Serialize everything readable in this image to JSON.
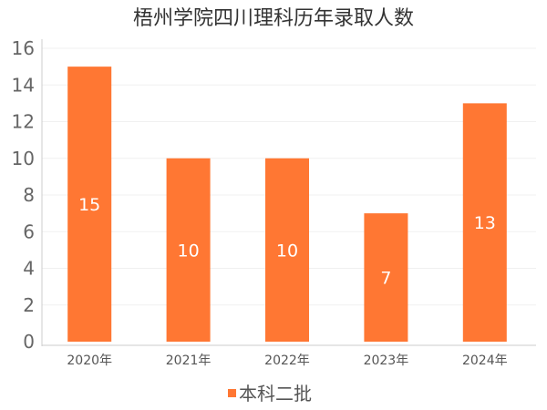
{
  "chart_data": {
    "type": "bar",
    "title": "梧州学院四川理科历年录取人数",
    "categories": [
      "2020年",
      "2021年",
      "2022年",
      "2023年",
      "2024年"
    ],
    "series": [
      {
        "name": "本科二批",
        "values": [
          15,
          10,
          10,
          7,
          13
        ],
        "color": "#FF7733"
      }
    ],
    "ylim": [
      0,
      16
    ],
    "yticks": [
      0,
      2,
      4,
      6,
      8,
      10,
      12,
      14,
      16
    ],
    "grid": true,
    "legend_position": "bottom-center",
    "data_labels": true
  }
}
